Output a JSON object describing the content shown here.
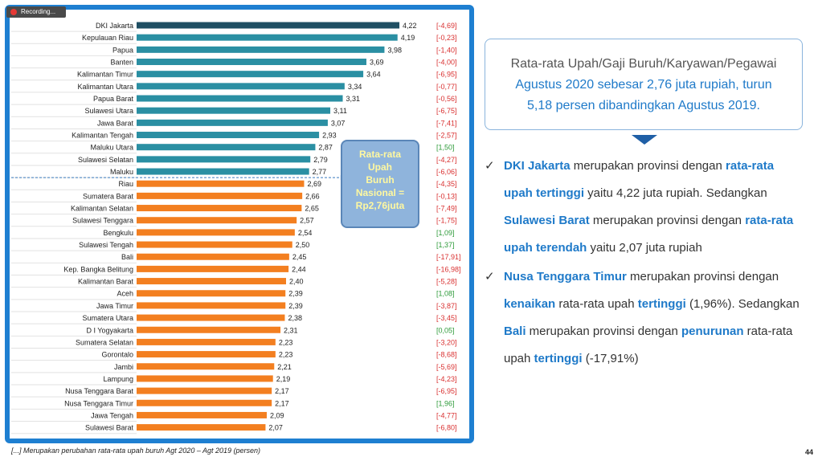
{
  "recording_label": "Recording...",
  "footnote": "[...] Merupakan perubahan rata-rata upah buruh Agt 2020 – Agt 2019 (persen)",
  "page_number": "44",
  "callout": {
    "l1": "Rata-rata",
    "l2": "Upah",
    "l3": "Buruh",
    "l4": "Nasional =",
    "l5": "Rp2,76juta"
  },
  "summary": {
    "line1": "Rata-rata Upah/Gaji Buruh/Karyawan/Pegawai",
    "line2": "Agustus 2020 sebesar 2,76 juta rupiah, turun",
    "line3": "5,18 persen dibandingkan Agustus 2019."
  },
  "points": [
    {
      "a": "DKI Jakarta",
      "b": " merupakan provinsi dengan ",
      "c": "rata-rata upah tertinggi",
      "d": " yaitu 4,22 juta rupiah. Sedangkan ",
      "e": "Sulawesi Barat",
      "f": " merupakan provinsi dengan ",
      "g": "rata-rata upah terendah",
      "h": " yaitu 2,07 juta rupiah"
    },
    {
      "a": "Nusa Tenggara Timur",
      "b": " merupakan provinsi dengan ",
      "c": "kenaikan",
      "d": " rata-rata upah ",
      "e": "tertinggi",
      "f": " (1,96%). Sedangkan ",
      "g": "Bali",
      "h": " merupakan provinsi dengan ",
      "i": "penurunan",
      "j": " rata-rata upah ",
      "k": "tertinggi",
      "l": " (-17,91%)"
    }
  ],
  "colors": {
    "above": "#2a8fa3",
    "below": "#f37f20",
    "top": "#1f4f63",
    "pos": "#2e9b3a",
    "neg": "#d93030"
  },
  "chart_data": {
    "type": "bar",
    "orientation": "horizontal",
    "categories": [
      "DKI Jakarta",
      "Kepulauan Riau",
      "Papua",
      "Banten",
      "Kalimantan Timur",
      "Kalimantan Utara",
      "Papua Barat",
      "Sulawesi Utara",
      "Jawa Barat",
      "Kalimantan Tengah",
      "Maluku Utara",
      "Sulawesi Selatan",
      "Maluku",
      "Riau",
      "Sumatera Barat",
      "Kalimantan Selatan",
      "Sulawesi Tenggara",
      "Bengkulu",
      "Sulawesi Tengah",
      "Bali",
      "Kep. Bangka Belitung",
      "Kalimantan Barat",
      "Aceh",
      "Jawa Timur",
      "Sumatera Utara",
      "D I Yogyakarta",
      "Sumatera Selatan",
      "Gorontalo",
      "Jambi",
      "Lampung",
      "Nusa Tenggara Barat",
      "Nusa Tenggara Timur",
      "Jawa Tengah",
      "Sulawesi Barat"
    ],
    "values": [
      4.22,
      4.19,
      3.98,
      3.69,
      3.64,
      3.34,
      3.31,
      3.11,
      3.07,
      2.93,
      2.87,
      2.79,
      2.77,
      2.69,
      2.66,
      2.65,
      2.57,
      2.54,
      2.5,
      2.45,
      2.44,
      2.4,
      2.39,
      2.39,
      2.38,
      2.31,
      2.23,
      2.23,
      2.21,
      2.19,
      2.17,
      2.17,
      2.09,
      2.07
    ],
    "value_labels": [
      "4,22",
      "4,19",
      "3,98",
      "3,69",
      "3,64",
      "3,34",
      "3,31",
      "3,11",
      "3,07",
      "2,93",
      "2,87",
      "2,79",
      "2,77",
      "2,69",
      "2,66",
      "2,65",
      "2,57",
      "2,54",
      "2,50",
      "2,45",
      "2,44",
      "2,40",
      "2,39",
      "2,39",
      "2,38",
      "2,31",
      "2,23",
      "2,23",
      "2,21",
      "2,19",
      "2,17",
      "2,17",
      "2,09",
      "2,07"
    ],
    "changes": [
      "[-4,69]",
      "[-0,23]",
      "[-1,40]",
      "[-4,00]",
      "[-6,95]",
      "[-0,77]",
      "[-0,56]",
      "[-6,75]",
      "[-7,41]",
      "[-2,57]",
      "[1,50]",
      "[-4,27]",
      "[-6,06]",
      "[-4,35]",
      "[-0,13]",
      "[-7,49]",
      "[-1,75]",
      "[1,09]",
      "[1,37]",
      "[-17,91]",
      "[-16,98]",
      "[-5,28]",
      "[1,08]",
      "[-3,87]",
      "[-3,45]",
      "[0,05]",
      "[-3,20]",
      "[-8,68]",
      "[-5,69]",
      "[-4,23]",
      "[-6,95]",
      "[1,96]",
      "[-4,77]",
      "[-6,80]"
    ],
    "national_average": 2.76
  }
}
